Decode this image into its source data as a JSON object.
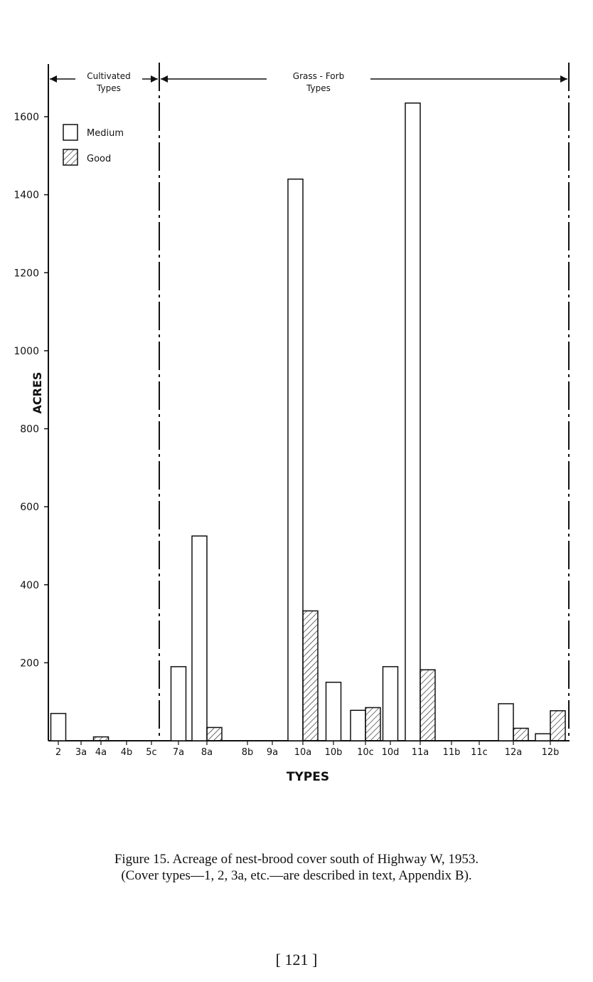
{
  "chart_data": {
    "type": "bar",
    "ylabel": "ACRES",
    "xlabel": "TYPES",
    "ylim": [
      0,
      1700
    ],
    "yticks": [
      200,
      400,
      600,
      800,
      1000,
      1200,
      1400,
      1600
    ],
    "ytick_labels": [
      "200",
      "400",
      "600",
      "800",
      "1000",
      "1200",
      "1400",
      "1600"
    ],
    "categories": [
      "2",
      "3a",
      "4a",
      "4b",
      "5c",
      "7a",
      "8a",
      "8b",
      "9a",
      "10a",
      "10b",
      "10c",
      "10d",
      "11a",
      "11b",
      "11c",
      "12a",
      "12b"
    ],
    "series": [
      {
        "name": "Medium",
        "fill": "open",
        "values": [
          70,
          0,
          0,
          0,
          0,
          190,
          525,
          0,
          0,
          1440,
          150,
          78,
          190,
          1635,
          0,
          0,
          95,
          18
        ]
      },
      {
        "name": "Good",
        "fill": "hatched",
        "values": [
          0,
          0,
          10,
          0,
          0,
          0,
          34,
          0,
          0,
          333,
          0,
          85,
          0,
          182,
          0,
          0,
          32,
          77
        ]
      }
    ],
    "legend_position": "top-left",
    "groups": [
      {
        "label_line1": "Cultivated",
        "label_line2": "Types",
        "first": "2",
        "last": "5c"
      },
      {
        "label_line1": "Grass - Forb",
        "label_line2": "Types",
        "first": "7a",
        "last": "12b"
      }
    ],
    "grid": false
  },
  "caption": {
    "line1": "Figure 15. Acreage of nest-brood cover south of Highway W, 1953.",
    "line2": "(Cover types—1, 2, 3a, etc.—are described in text, Appendix B)."
  },
  "page_number": "[ 121 ]",
  "colors": {
    "ink": "#111111",
    "paper": "#ffffff"
  }
}
